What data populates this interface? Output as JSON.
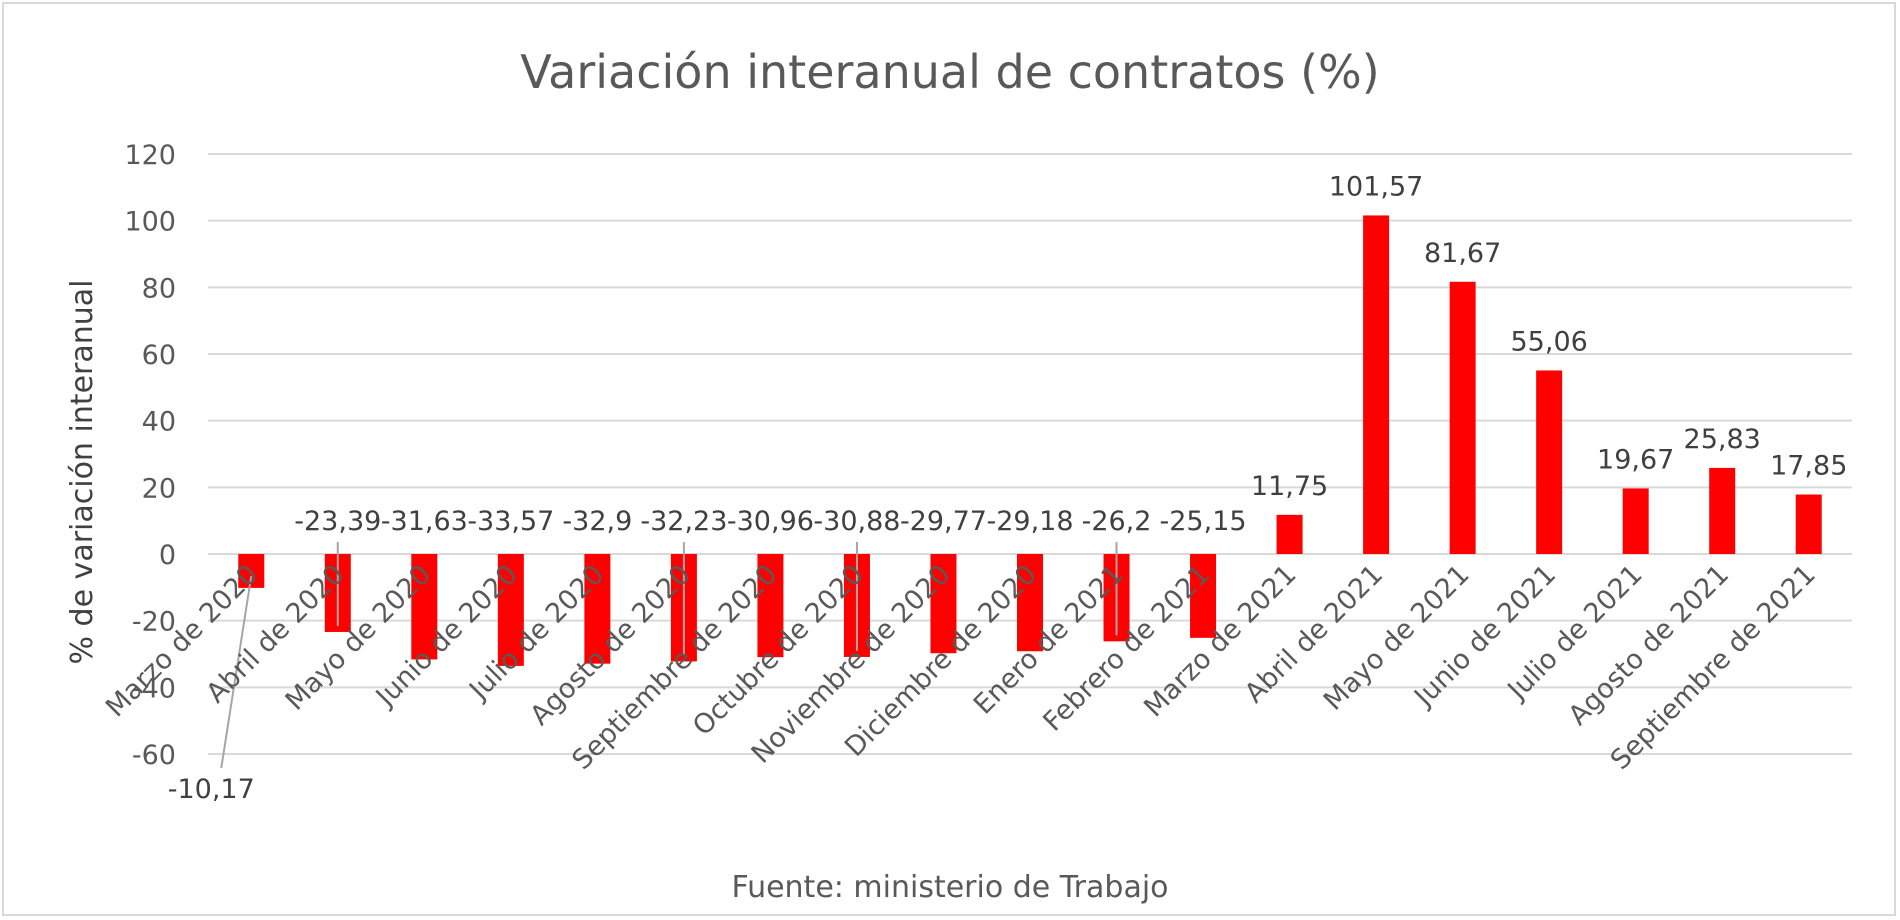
{
  "chart_data": {
    "type": "bar",
    "title": "Variación interanual de contratos  (%)",
    "xlabel": "",
    "ylabel": "% de variación interanual",
    "source": "Fuente: ministerio de Trabajo",
    "ylim": [
      -60,
      120
    ],
    "yticks": [
      120,
      100,
      80,
      60,
      40,
      20,
      0,
      -20,
      -40,
      -60
    ],
    "grid": true,
    "bar_color": "#ff0000",
    "categories": [
      "Marzo de 2020",
      "Abril de 2020",
      "Mayo de 2020",
      "Junio de 2020",
      "Julio de 2020",
      "Agosto de 2020",
      "Septiembre de 2020",
      "Octubre de 2020",
      "Noviembre de 2020",
      "Diciembre de 2020",
      "Enero de 2021",
      "Febrero de 2021",
      "Marzo de 2021",
      "Abril de 2021",
      "Mayo de 2021",
      "Junio de 2021",
      "Julio de 2021",
      "Agosto de 2021",
      "Septiembre de 2021"
    ],
    "values": [
      -10.17,
      -23.39,
      -31.63,
      -33.57,
      -32.9,
      -32.23,
      -30.96,
      -30.88,
      -29.77,
      -29.18,
      -26.2,
      -25.15,
      11.75,
      101.57,
      81.67,
      55.06,
      19.67,
      25.83,
      17.85
    ],
    "data_labels": [
      "-10,17",
      "-23,39",
      "-31,63",
      "-33,57",
      "-32,9",
      "-32,23",
      "-30,96",
      "-30,88",
      "-29,77",
      "-29,18",
      "-26,2",
      "-25,15",
      "11,75",
      "101,57",
      "81,67",
      "55,06",
      "19,67",
      "25,83",
      "17,85"
    ]
  }
}
